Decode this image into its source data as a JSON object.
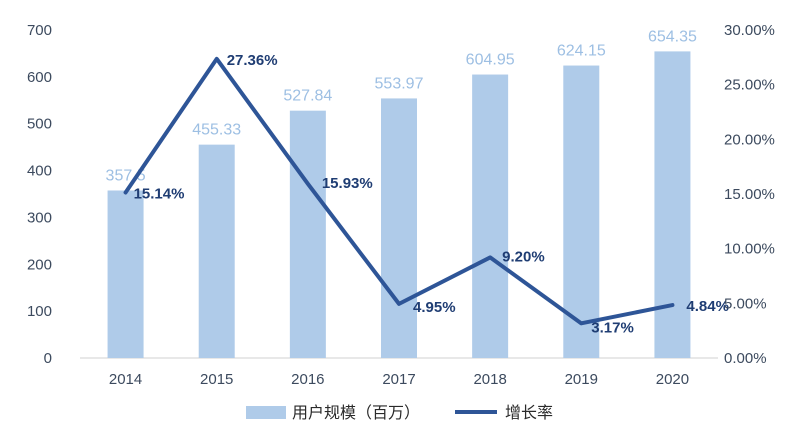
{
  "chart_data": {
    "type": "bar",
    "categories": [
      "2014",
      "2015",
      "2016",
      "2017",
      "2018",
      "2019",
      "2020"
    ],
    "series": [
      {
        "name": "用户规模（百万）",
        "type": "bar",
        "axis": "left",
        "values": [
          357.5,
          455.33,
          527.84,
          553.97,
          604.95,
          624.15,
          654.35
        ],
        "labels": [
          "357.5",
          "455.33",
          "527.84",
          "553.97",
          "604.95",
          "624.15",
          "654.35"
        ]
      },
      {
        "name": "增长率",
        "type": "line",
        "axis": "right",
        "values": [
          15.14,
          27.36,
          15.93,
          4.95,
          9.2,
          3.17,
          4.84
        ],
        "labels": [
          "15.14%",
          "27.36%",
          "15.93%",
          "4.95%",
          "9.20%",
          "3.17%",
          "4.84%"
        ]
      }
    ],
    "y_left": {
      "ylim": [
        0,
        700
      ],
      "ticks": [
        "0",
        "100",
        "200",
        "300",
        "400",
        "500",
        "600",
        "700"
      ]
    },
    "y_right": {
      "ylim": [
        0,
        30
      ],
      "ticks": [
        "0.00%",
        "5.00%",
        "10.00%",
        "15.00%",
        "20.00%",
        "25.00%",
        "30.00%"
      ]
    },
    "grid": false,
    "legend_position": "bottom",
    "colors": {
      "bar": "#afcbe9",
      "line": "#2e5597",
      "bar_label": "#9dbfe3",
      "rate_label": "#1f3d73"
    }
  }
}
